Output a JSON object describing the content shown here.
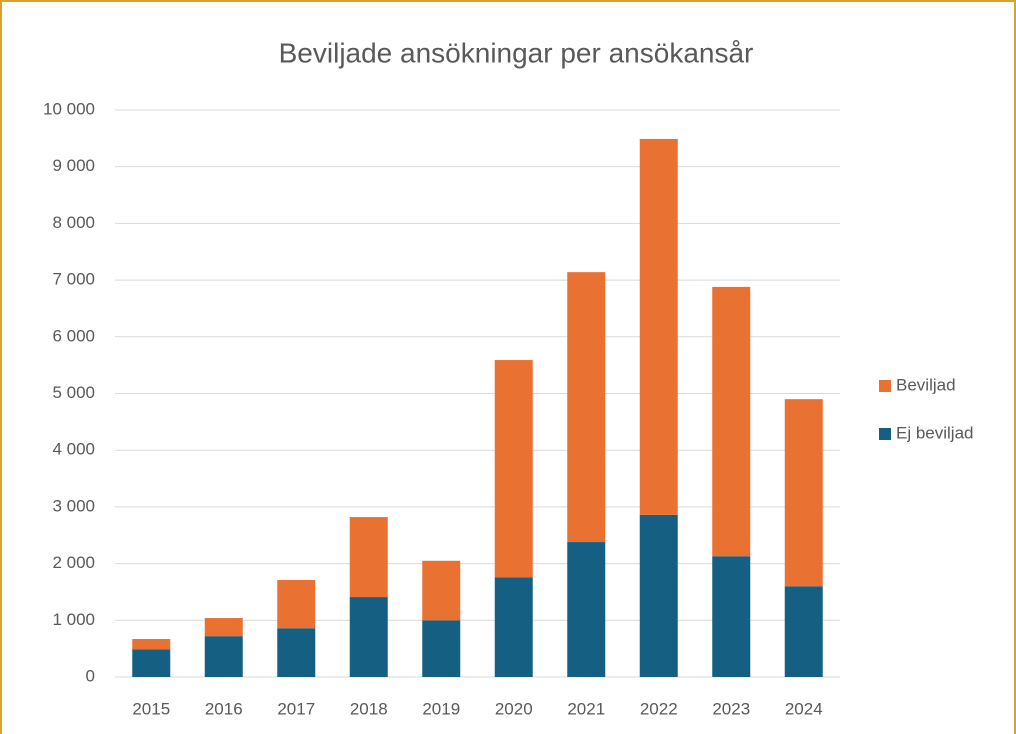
{
  "chart_data": {
    "type": "stacked_bar",
    "title": "Beviljade ansökningar per ansökansår",
    "categories": [
      "2015",
      "2016",
      "2017",
      "2018",
      "2019",
      "2020",
      "2021",
      "2022",
      "2023",
      "2024"
    ],
    "series": [
      {
        "name": "Ej beviljad",
        "color": "#156082",
        "values": [
          490,
          720,
          860,
          1410,
          1000,
          1760,
          2380,
          2860,
          2130,
          1600
        ]
      },
      {
        "name": "Beviljad",
        "color": "#e97132",
        "values": [
          180,
          320,
          850,
          1410,
          1050,
          3830,
          4760,
          6630,
          4750,
          3300
        ]
      }
    ],
    "ylim": [
      0,
      10000
    ],
    "yticks": [
      0,
      {
        "value": 1000,
        "label": "1 000"
      },
      {
        "value": 2000,
        "label": "2 000"
      },
      {
        "value": 3000,
        "label": "3 000"
      },
      {
        "value": 4000,
        "label": "4 000"
      },
      {
        "value": 5000,
        "label": "5 000"
      },
      {
        "value": 6000,
        "label": "6 000"
      },
      {
        "value": 7000,
        "label": "7 000"
      },
      {
        "value": 8000,
        "label": "8 000"
      },
      {
        "value": 9000,
        "label": "9 000"
      },
      {
        "value": 10000,
        "label": "10 000"
      }
    ],
    "grid": true,
    "legend": "right"
  }
}
